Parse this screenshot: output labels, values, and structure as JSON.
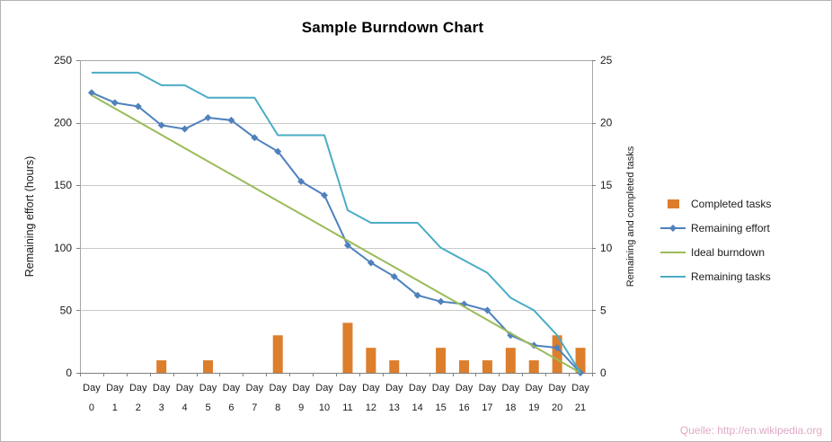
{
  "watermark": "Quelle: http://en.wikipedia.org",
  "chart_data": {
    "type": "combo",
    "title": "Sample Burndown Chart",
    "grid": true,
    "legend_position": "right",
    "categories": [
      "Day 0",
      "Day 1",
      "Day 2",
      "Day 3",
      "Day 4",
      "Day 5",
      "Day 6",
      "Day 7",
      "Day 8",
      "Day 9",
      "Day 10",
      "Day 11",
      "Day 12",
      "Day 13",
      "Day 14",
      "Day 15",
      "Day 16",
      "Day 17",
      "Day 18",
      "Day 19",
      "Day 20",
      "Day 21"
    ],
    "left_axis": {
      "title": "Remaining effort (hours)",
      "min": 0,
      "max": 250,
      "ticks": [
        0,
        50,
        100,
        150,
        200,
        250
      ]
    },
    "right_axis": {
      "title": "Remaining and completed tasks",
      "min": 0,
      "max": 25,
      "ticks": [
        0,
        5,
        10,
        15,
        20,
        25
      ]
    },
    "series": [
      {
        "name": "Completed tasks",
        "chart_type": "bar",
        "axis": "right",
        "color": "#dd7e2c",
        "values": [
          0,
          0,
          0,
          1,
          0,
          1,
          0,
          0,
          3,
          0,
          0,
          4,
          2,
          1,
          0,
          2,
          1,
          1,
          2,
          1,
          3,
          2
        ]
      },
      {
        "name": "Remaining effort",
        "chart_type": "line",
        "marker": "diamond",
        "axis": "left",
        "color": "#4f81bd",
        "values": [
          224,
          216,
          213,
          198,
          195,
          204,
          202,
          188,
          177,
          153,
          142,
          102,
          88,
          77,
          62,
          57,
          55,
          50,
          30,
          22,
          20,
          0
        ]
      },
      {
        "name": "Ideal burndown",
        "chart_type": "line",
        "axis": "left",
        "color": "#9bbb59",
        "values": [
          222,
          211.4,
          200.9,
          190.3,
          179.7,
          169.1,
          158.6,
          148,
          137.4,
          126.9,
          116.3,
          105.7,
          95.1,
          84.6,
          74,
          63.4,
          52.9,
          42.3,
          31.7,
          21.1,
          10.6,
          0
        ]
      },
      {
        "name": "Remaining tasks",
        "chart_type": "line",
        "axis": "right",
        "color": "#4bacc6",
        "values": [
          24,
          24,
          24,
          23,
          23,
          22,
          22,
          22,
          19,
          19,
          19,
          13,
          12,
          12,
          12,
          10,
          9,
          8,
          6,
          5,
          3,
          0
        ]
      }
    ]
  }
}
